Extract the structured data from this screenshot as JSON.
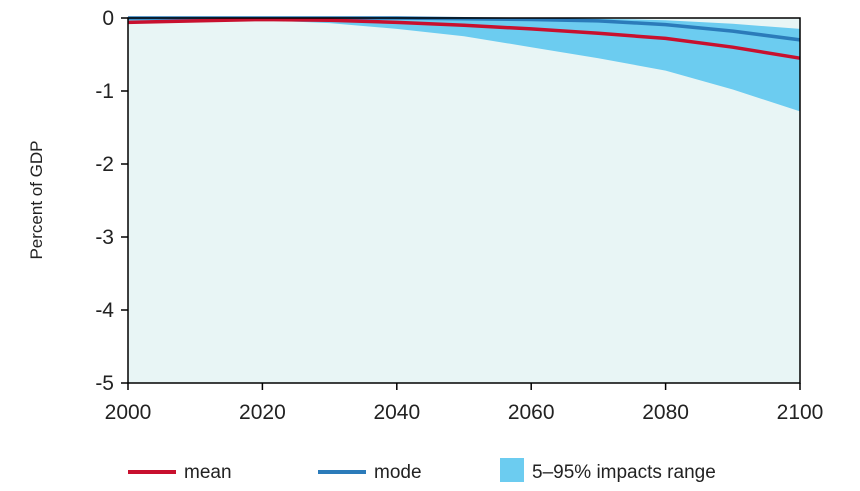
{
  "chart_data": {
    "type": "area",
    "title": "",
    "xlabel": "",
    "ylabel": "Percent of GDP",
    "xlim": [
      2000,
      2100
    ],
    "ylim": [
      -5,
      0
    ],
    "x_ticks": [
      "2000",
      "2020",
      "2040",
      "2060",
      "2080",
      "2100"
    ],
    "y_ticks": [
      "0",
      "-1",
      "-2",
      "-3",
      "-4",
      "-5"
    ],
    "grid": false,
    "legend_position": "bottom",
    "colors": {
      "mean": "#c8102e",
      "mode": "#2b7bba",
      "range": "#6cccf0",
      "plot_background": "#e8f5f5"
    },
    "x": [
      2000,
      2010,
      2020,
      2030,
      2040,
      2050,
      2060,
      2070,
      2080,
      2090,
      2100
    ],
    "series": [
      {
        "name": "mean",
        "values": [
          -0.06,
          -0.04,
          -0.02,
          -0.03,
          -0.06,
          -0.1,
          -0.15,
          -0.21,
          -0.28,
          -0.4,
          -0.55
        ]
      },
      {
        "name": "mode",
        "values": [
          0,
          0,
          0,
          0,
          0,
          -0.01,
          -0.02,
          -0.04,
          -0.09,
          -0.18,
          -0.3
        ]
      }
    ],
    "band": {
      "name": "5–95% impacts range",
      "lower": [
        -0.08,
        -0.05,
        -0.03,
        -0.07,
        -0.15,
        -0.25,
        -0.4,
        -0.55,
        -0.72,
        -0.98,
        -1.28
      ],
      "upper": [
        0,
        0,
        0,
        0,
        0,
        0,
        0,
        -0.01,
        -0.03,
        -0.08,
        -0.15
      ]
    }
  }
}
